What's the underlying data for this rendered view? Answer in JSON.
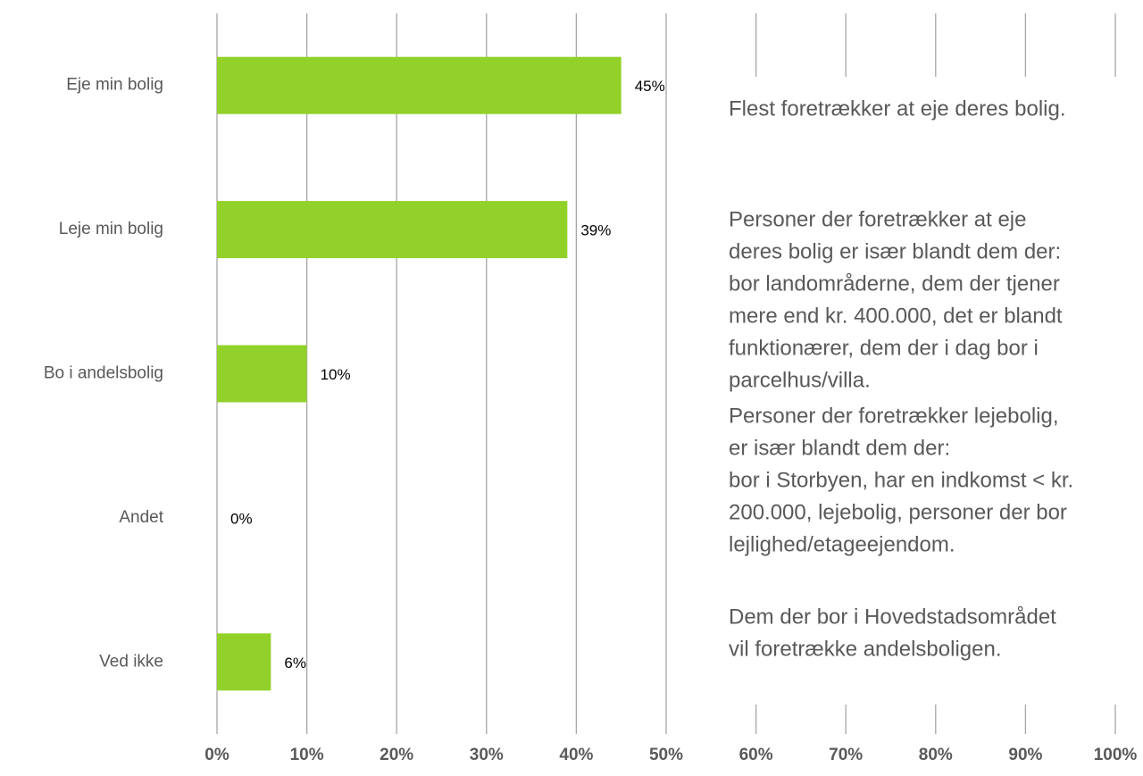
{
  "chart_data": {
    "type": "bar",
    "orientation": "horizontal",
    "categories": [
      "Eje min bolig",
      "Leje min bolig",
      "Bo i andelsbolig",
      "Andet",
      "Ved ikke"
    ],
    "values": [
      45,
      39,
      10,
      0,
      6
    ],
    "value_labels": [
      "45%",
      "39%",
      "10%",
      "0%",
      "6%"
    ],
    "color": "#92d12a",
    "xlim": [
      0,
      100
    ],
    "xticks": [
      {
        "value": 0,
        "label": "0%"
      },
      {
        "value": 10,
        "label": "10%"
      },
      {
        "value": 20,
        "label": "20%"
      },
      {
        "value": 30,
        "label": "30%"
      },
      {
        "value": 40,
        "label": "40%"
      },
      {
        "value": 50,
        "label": "50%"
      },
      {
        "value": 60,
        "label": "60%"
      },
      {
        "value": 70,
        "label": "70%"
      },
      {
        "value": 80,
        "label": "80%"
      },
      {
        "value": 90,
        "label": "90%"
      },
      {
        "value": 100,
        "label": "100%"
      }
    ],
    "grid": true,
    "annotations": [
      [
        "Flest foretrækker at eje deres bolig."
      ],
      [
        "Personer der foretrækker at eje",
        "deres bolig er især blandt dem der:",
        "bor landområderne, dem der tjener",
        "mere end kr. 400.000, det er blandt",
        "funktionærer, dem der i dag bor i",
        "parcelhus/villa."
      ],
      [
        "Personer der foretrækker lejebolig,",
        "er især blandt dem der:",
        "bor i Storbyen, har en indkomst < kr.",
        "200.000, lejebolig, personer der bor",
        "lejlighed/etageejendom."
      ],
      [
        "Dem der bor i Hovedstadsområdet",
        "vil foretrække andelsboligen."
      ]
    ]
  }
}
